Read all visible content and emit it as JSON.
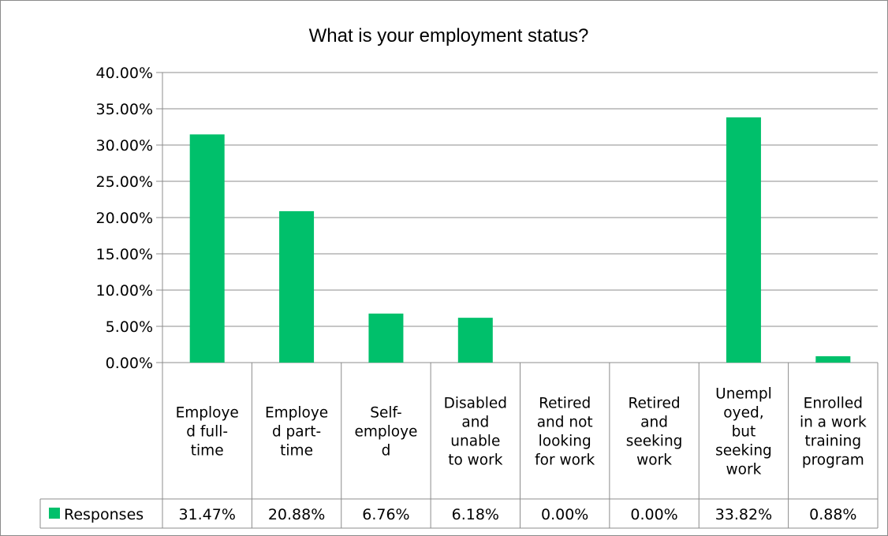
{
  "chart_data": {
    "type": "bar",
    "title": "What is your employment  status?",
    "categories": [
      "Employed full-time",
      "Employed part-time",
      "Self-employed",
      "Disabled and unable to work",
      "Retired and not looking for work",
      "Retired and seeking work",
      "Unemployed, but seeking work",
      "Enrolled in a work training program"
    ],
    "category_lines": [
      [
        "Employe",
        "d full-",
        "time"
      ],
      [
        "Employe",
        "d part-",
        "time"
      ],
      [
        "Self-",
        "employe",
        "d"
      ],
      [
        "Disabled",
        "and",
        "unable",
        "to work"
      ],
      [
        "Retired",
        "and not",
        "looking",
        "for work"
      ],
      [
        "Retired",
        "and",
        "seeking",
        "work"
      ],
      [
        "Unempl",
        "oyed,",
        "but",
        "seeking",
        "work"
      ],
      [
        "Enrolled",
        "in a work",
        "training",
        "program"
      ]
    ],
    "series": [
      {
        "name": "Responses",
        "values": [
          31.47,
          20.88,
          6.76,
          6.18,
          0.0,
          0.0,
          33.82,
          0.88
        ],
        "labels": [
          "31.47%",
          "20.88%",
          "6.76%",
          "6.18%",
          "0.00%",
          "0.00%",
          "33.82%",
          "0.88%"
        ],
        "color": "#00C06B"
      }
    ],
    "ylim": [
      0,
      40
    ],
    "yticks": [
      "0.00%",
      "5.00%",
      "10.00%",
      "15.00%",
      "20.00%",
      "25.00%",
      "30.00%",
      "35.00%",
      "40.00%"
    ],
    "xlabel": "",
    "ylabel": "",
    "grid": true,
    "legend": "data-table-left",
    "data_table": true,
    "colors": {
      "bar": "#00C06B",
      "grid": "#8c8c8c",
      "frame": "#8a8a8a"
    }
  }
}
